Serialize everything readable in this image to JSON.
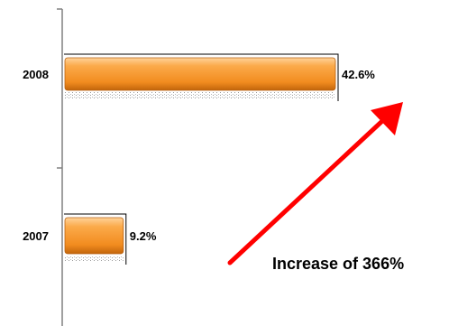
{
  "chart_data": {
    "type": "bar",
    "orientation": "horizontal",
    "categories": [
      "2008",
      "2007"
    ],
    "values": [
      42.6,
      9.2
    ],
    "value_labels": [
      "42.6%",
      "9.2%"
    ],
    "title": "",
    "xlabel": "",
    "ylabel": "",
    "xlim": [
      0,
      50
    ],
    "grid": false,
    "legend": "none",
    "annotation": {
      "text": "Increase of 366%",
      "arrow_color": "#ff0000"
    }
  },
  "colors": {
    "bar_light": "#ffc27a",
    "bar_mid": "#f7962a",
    "bar_dark": "#c76a0c",
    "axis": "#808080",
    "arrow": "#ff0000"
  }
}
